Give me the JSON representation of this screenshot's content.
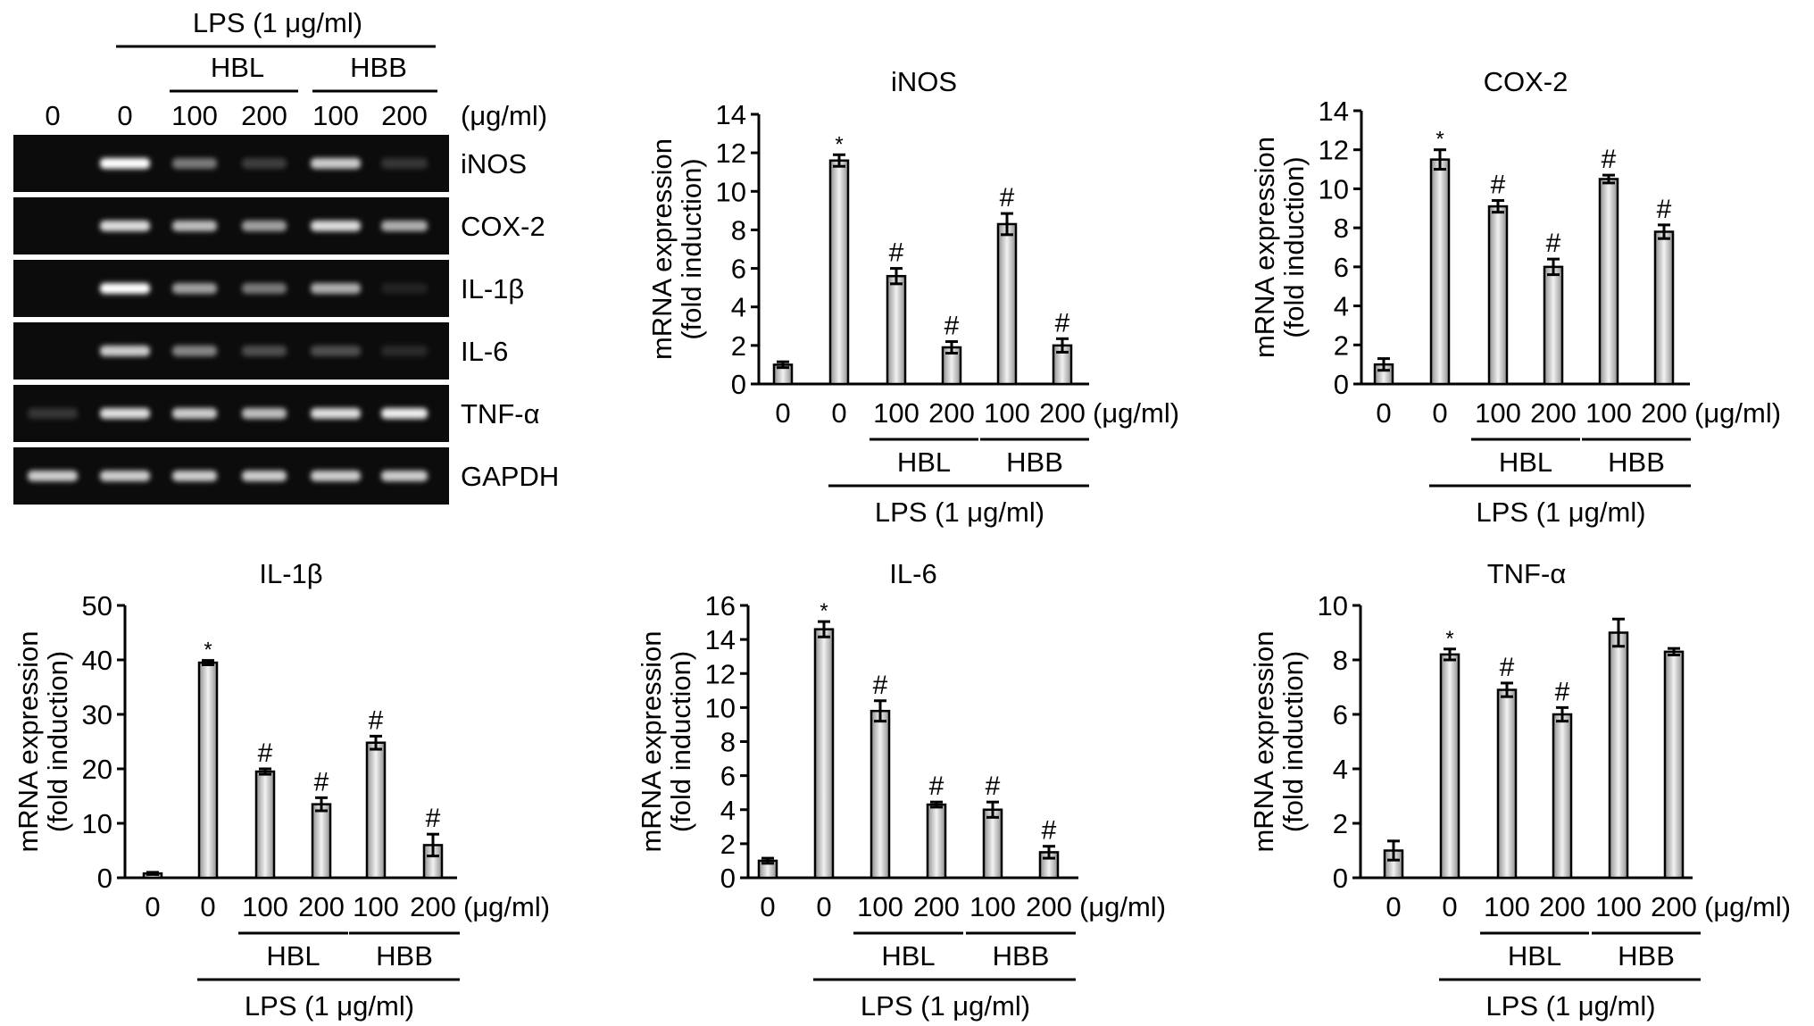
{
  "gel": {
    "treatment_label": "LPS (1 μg/ml)",
    "group_labels": [
      "HBL",
      "HBB"
    ],
    "lane_labels": [
      "0",
      "0",
      "100",
      "200",
      "100",
      "200"
    ],
    "unit_label": "(μg/ml)",
    "genes": [
      "iNOS",
      "COX-2",
      "IL-1β",
      "IL-6",
      "TNF-α",
      "GAPDH"
    ],
    "band_intensity": [
      [
        0.0,
        1.0,
        0.55,
        0.25,
        0.85,
        0.2
      ],
      [
        0.0,
        0.9,
        0.8,
        0.7,
        0.9,
        0.75
      ],
      [
        0.0,
        1.0,
        0.7,
        0.55,
        0.75,
        0.05
      ],
      [
        0.0,
        0.85,
        0.6,
        0.35,
        0.35,
        0.12
      ],
      [
        0.2,
        0.9,
        0.85,
        0.8,
        0.9,
        0.95
      ],
      [
        0.85,
        0.85,
        0.85,
        0.85,
        0.85,
        0.85
      ]
    ]
  },
  "chart_data": [
    {
      "type": "bar",
      "title": "iNOS",
      "ylabel_line1": "mRNA expression",
      "ylabel_line2": "(fold induction)",
      "ylim": [
        0,
        14
      ],
      "yticks": [
        0,
        2,
        4,
        6,
        8,
        10,
        12,
        14
      ],
      "categories": [
        "0",
        "0",
        "100",
        "200",
        "100",
        "200"
      ],
      "values": [
        1.0,
        11.6,
        5.6,
        1.9,
        8.3,
        2.0
      ],
      "errors": [
        0.15,
        0.3,
        0.4,
        0.3,
        0.55,
        0.35
      ],
      "markers": [
        "",
        "*",
        "#",
        "#",
        "#",
        "#"
      ],
      "unit_label": "(μg/ml)",
      "group_labels": [
        "HBL",
        "HBB"
      ],
      "treatment_label": "LPS (1 μg/ml)"
    },
    {
      "type": "bar",
      "title": "COX-2",
      "ylabel_line1": "mRNA expression",
      "ylabel_line2": "(fold induction)",
      "ylim": [
        0,
        14
      ],
      "yticks": [
        0,
        2,
        4,
        6,
        8,
        10,
        12,
        14
      ],
      "categories": [
        "0",
        "0",
        "100",
        "200",
        "100",
        "200"
      ],
      "values": [
        1.0,
        11.5,
        9.1,
        6.0,
        10.5,
        7.8
      ],
      "errors": [
        0.3,
        0.5,
        0.3,
        0.4,
        0.2,
        0.35
      ],
      "markers": [
        "",
        "*",
        "#",
        "#",
        "#",
        "#"
      ],
      "unit_label": "(μg/ml)",
      "group_labels": [
        "HBL",
        "HBB"
      ],
      "treatment_label": "LPS (1 μg/ml)"
    },
    {
      "type": "bar",
      "title": "IL-1β",
      "ylabel_line1": "mRNA expression",
      "ylabel_line2": "(fold induction)",
      "ylim": [
        0,
        50
      ],
      "yticks": [
        0,
        10,
        20,
        30,
        40,
        50
      ],
      "categories": [
        "0",
        "0",
        "100",
        "200",
        "100",
        "200"
      ],
      "values": [
        0.8,
        39.5,
        19.5,
        13.5,
        24.8,
        6.0
      ],
      "errors": [
        0.2,
        0.4,
        0.5,
        1.2,
        1.2,
        2.0
      ],
      "markers": [
        "",
        "*",
        "#",
        "#",
        "#",
        "#"
      ],
      "unit_label": "(μg/ml)",
      "group_labels": [
        "HBL",
        "HBB"
      ],
      "treatment_label": "LPS (1 μg/ml)"
    },
    {
      "type": "bar",
      "title": "IL-6",
      "ylabel_line1": "mRNA expression",
      "ylabel_line2": "(fold induction)",
      "ylim": [
        0,
        16
      ],
      "yticks": [
        0,
        2,
        4,
        6,
        8,
        10,
        12,
        14,
        16
      ],
      "categories": [
        "0",
        "0",
        "100",
        "200",
        "100",
        "200"
      ],
      "values": [
        1.0,
        14.6,
        9.8,
        4.3,
        4.0,
        1.5
      ],
      "errors": [
        0.15,
        0.45,
        0.6,
        0.15,
        0.45,
        0.35
      ],
      "markers": [
        "",
        "*",
        "#",
        "#",
        "#",
        "#"
      ],
      "unit_label": "(μg/ml)",
      "group_labels": [
        "HBL",
        "HBB"
      ],
      "treatment_label": "LPS (1 μg/ml)"
    },
    {
      "type": "bar",
      "title": "TNF-α",
      "ylabel_line1": "mRNA expression",
      "ylabel_line2": "(fold induction)",
      "ylim": [
        0,
        10
      ],
      "yticks": [
        0,
        2,
        4,
        6,
        8,
        10
      ],
      "categories": [
        "0",
        "0",
        "100",
        "200",
        "100",
        "200"
      ],
      "values": [
        1.0,
        8.2,
        6.9,
        6.0,
        9.0,
        8.3
      ],
      "errors": [
        0.35,
        0.2,
        0.25,
        0.25,
        0.5,
        0.12
      ],
      "markers": [
        "",
        "*",
        "#",
        "#",
        "",
        ""
      ],
      "unit_label": "(μg/ml)",
      "group_labels": [
        "HBL",
        "HBB"
      ],
      "treatment_label": "LPS (1 μg/ml)"
    }
  ]
}
